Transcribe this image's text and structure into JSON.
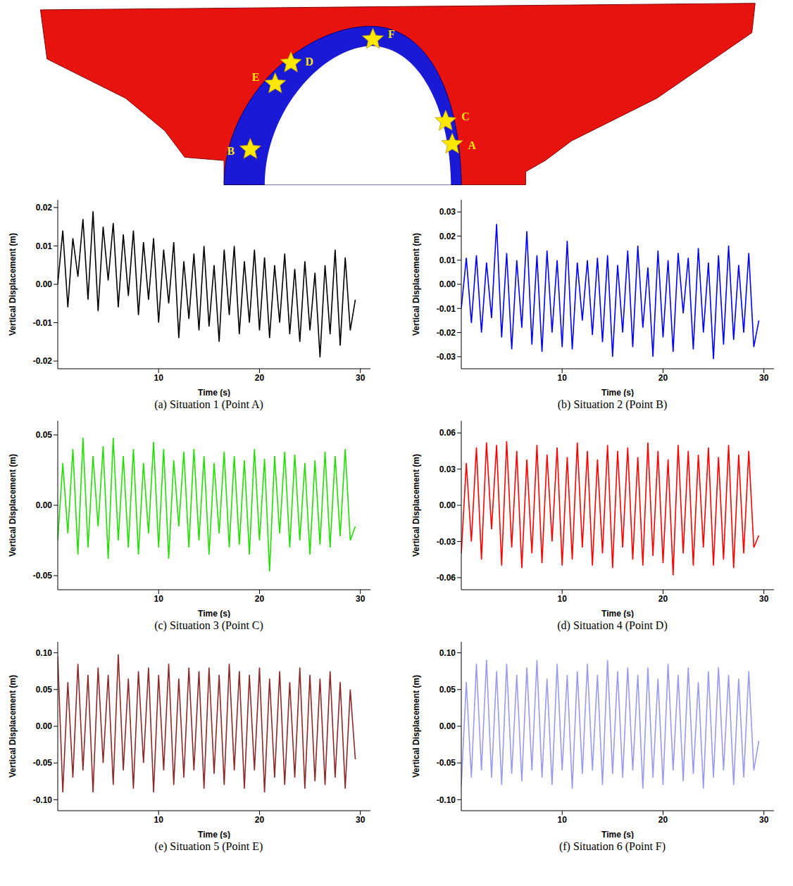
{
  "diagram": {
    "points": [
      "A",
      "B",
      "C",
      "D",
      "E",
      "F"
    ]
  },
  "chart_data": [
    {
      "type": "line",
      "title": "(a) Situation 1 (Point A)",
      "xlabel": "Time (s)",
      "ylabel": "Vertical Displacement (m)",
      "color": "#000000",
      "grid": false,
      "xlim": [
        0,
        31
      ],
      "xticks": [
        10,
        20,
        30
      ],
      "ylim": [
        -0.022,
        0.022
      ],
      "yticks": [
        -0.02,
        -0.01,
        {
          "value": 0,
          "label": "0.00"
        },
        0.01,
        0.02
      ],
      "x": [
        0,
        0.5,
        1,
        1.5,
        2,
        2.5,
        3,
        3.5,
        4,
        4.5,
        5,
        5.5,
        6,
        6.5,
        7,
        7.5,
        8,
        8.5,
        9,
        9.5,
        10,
        10.5,
        11,
        11.5,
        12,
        12.5,
        13,
        13.5,
        14,
        14.5,
        15,
        15.5,
        16,
        16.5,
        17,
        17.5,
        18,
        18.5,
        19,
        19.5,
        20,
        20.5,
        21,
        21.5,
        22,
        22.5,
        23,
        23.5,
        24,
        24.5,
        25,
        25.5,
        26,
        26.5,
        27,
        27.5,
        28,
        28.5,
        29,
        29.5
      ],
      "values": [
        0.0,
        0.014,
        -0.006,
        0.012,
        0.002,
        0.017,
        -0.004,
        0.019,
        -0.007,
        0.015,
        0.001,
        0.016,
        -0.006,
        0.013,
        -0.003,
        0.014,
        -0.008,
        0.011,
        -0.004,
        0.012,
        -0.01,
        0.009,
        -0.005,
        0.011,
        -0.014,
        0.006,
        -0.009,
        0.008,
        -0.012,
        0.01,
        -0.011,
        0.005,
        -0.015,
        0.009,
        -0.008,
        0.01,
        -0.013,
        0.006,
        -0.01,
        0.009,
        -0.012,
        0.007,
        -0.014,
        0.005,
        -0.01,
        0.008,
        -0.013,
        0.004,
        -0.015,
        0.006,
        -0.012,
        0.003,
        -0.019,
        0.005,
        -0.013,
        0.009,
        -0.016,
        0.007,
        -0.012,
        -0.004
      ]
    },
    {
      "type": "line",
      "title": "(b) Situation 2 (Point B)",
      "xlabel": "Time (s)",
      "ylabel": "Vertical Displacement (m)",
      "color": "#0000ff",
      "grid": false,
      "xlim": [
        0,
        31
      ],
      "xticks": [
        10,
        20,
        30
      ],
      "ylim": [
        -0.035,
        0.035
      ],
      "yticks": [
        -0.03,
        -0.02,
        -0.01,
        {
          "value": 0,
          "label": "0.00"
        },
        0.01,
        0.02,
        0.03
      ],
      "x": [
        0,
        0.5,
        1,
        1.5,
        2,
        2.5,
        3,
        3.5,
        4,
        4.5,
        5,
        5.5,
        6,
        6.5,
        7,
        7.5,
        8,
        8.5,
        9,
        9.5,
        10,
        10.5,
        11,
        11.5,
        12,
        12.5,
        13,
        13.5,
        14,
        14.5,
        15,
        15.5,
        16,
        16.5,
        17,
        17.5,
        18,
        18.5,
        19,
        19.5,
        20,
        20.5,
        21,
        21.5,
        22,
        22.5,
        23,
        23.5,
        24,
        24.5,
        25,
        25.5,
        26,
        26.5,
        27,
        27.5,
        28,
        28.5,
        29,
        29.5
      ],
      "values": [
        -0.01,
        0.011,
        -0.016,
        0.012,
        -0.02,
        0.009,
        -0.014,
        0.025,
        -0.022,
        0.013,
        -0.027,
        0.01,
        -0.018,
        0.022,
        -0.025,
        0.012,
        -0.028,
        0.014,
        -0.02,
        0.01,
        -0.026,
        0.018,
        -0.027,
        0.009,
        -0.015,
        0.01,
        -0.021,
        0.011,
        -0.024,
        0.012,
        -0.03,
        0.008,
        -0.02,
        0.014,
        -0.026,
        0.016,
        -0.018,
        0.007,
        -0.03,
        0.014,
        -0.022,
        0.01,
        -0.028,
        0.013,
        -0.012,
        0.011,
        -0.027,
        0.015,
        -0.02,
        0.009,
        -0.031,
        0.012,
        -0.025,
        0.016,
        -0.023,
        0.008,
        -0.02,
        0.013,
        -0.026,
        -0.015
      ]
    },
    {
      "type": "line",
      "title": "(c) Situation 3 (Point C)",
      "xlabel": "Time (s)",
      "ylabel": "Vertical Displacement (m)",
      "color": "#22dd00",
      "grid": false,
      "xlim": [
        0,
        31
      ],
      "xticks": [
        10,
        20,
        30
      ],
      "ylim": [
        -0.06,
        0.06
      ],
      "yticks": [
        -0.05,
        {
          "value": 0,
          "label": "0.00"
        },
        0.05
      ],
      "x": [
        0,
        0.5,
        1,
        1.5,
        2,
        2.5,
        3,
        3.5,
        4,
        4.5,
        5,
        5.5,
        6,
        6.5,
        7,
        7.5,
        8,
        8.5,
        9,
        9.5,
        10,
        10.5,
        11,
        11.5,
        12,
        12.5,
        13,
        13.5,
        14,
        14.5,
        15,
        15.5,
        16,
        16.5,
        17,
        17.5,
        18,
        18.5,
        19,
        19.5,
        20,
        20.5,
        21,
        21.5,
        22,
        22.5,
        23,
        23.5,
        24,
        24.5,
        25,
        25.5,
        26,
        26.5,
        27,
        27.5,
        28,
        28.5,
        29,
        29.5
      ],
      "values": [
        -0.025,
        0.03,
        -0.02,
        0.04,
        -0.035,
        0.048,
        -0.03,
        0.035,
        -0.015,
        0.042,
        -0.038,
        0.048,
        -0.025,
        0.035,
        -0.03,
        0.04,
        -0.035,
        0.03,
        -0.02,
        0.045,
        -0.03,
        0.04,
        -0.038,
        0.032,
        -0.015,
        0.038,
        -0.03,
        0.04,
        -0.025,
        0.035,
        -0.035,
        0.03,
        -0.02,
        0.038,
        -0.03,
        0.035,
        -0.028,
        0.032,
        -0.035,
        0.04,
        -0.025,
        0.033,
        -0.047,
        0.035,
        -0.02,
        0.038,
        -0.03,
        0.036,
        -0.025,
        0.03,
        -0.035,
        0.032,
        -0.028,
        0.038,
        -0.03,
        0.035,
        -0.022,
        0.04,
        -0.025,
        -0.015
      ]
    },
    {
      "type": "line",
      "title": "(d) Situation 4 (Point D)",
      "xlabel": "Time (s)",
      "ylabel": "Vertical Displacement (m)",
      "color": "#ff0000",
      "grid": false,
      "xlim": [
        0,
        31
      ],
      "xticks": [
        10,
        20,
        30
      ],
      "ylim": [
        -0.07,
        0.07
      ],
      "yticks": [
        -0.06,
        -0.03,
        {
          "value": 0,
          "label": "0.00"
        },
        0.03,
        0.06
      ],
      "x": [
        0,
        0.5,
        1,
        1.5,
        2,
        2.5,
        3,
        3.5,
        4,
        4.5,
        5,
        5.5,
        6,
        6.5,
        7,
        7.5,
        8,
        8.5,
        9,
        9.5,
        10,
        10.5,
        11,
        11.5,
        12,
        12.5,
        13,
        13.5,
        14,
        14.5,
        15,
        15.5,
        16,
        16.5,
        17,
        17.5,
        18,
        18.5,
        19,
        19.5,
        20,
        20.5,
        21,
        21.5,
        22,
        22.5,
        23,
        23.5,
        24,
        24.5,
        25,
        25.5,
        26,
        26.5,
        27,
        27.5,
        28,
        28.5,
        29,
        29.5
      ],
      "values": [
        -0.04,
        0.035,
        -0.03,
        0.048,
        -0.045,
        0.052,
        -0.02,
        0.05,
        -0.05,
        0.053,
        -0.035,
        0.045,
        -0.052,
        0.038,
        -0.04,
        0.05,
        -0.048,
        0.042,
        -0.03,
        0.048,
        -0.05,
        0.04,
        -0.045,
        0.052,
        -0.035,
        0.045,
        -0.05,
        0.038,
        -0.04,
        0.05,
        -0.052,
        0.045,
        -0.035,
        0.048,
        -0.045,
        0.04,
        -0.05,
        0.052,
        -0.042,
        0.045,
        -0.048,
        0.038,
        -0.058,
        0.05,
        -0.04,
        0.045,
        -0.05,
        0.042,
        -0.035,
        0.048,
        -0.05,
        0.04,
        -0.045,
        0.05,
        -0.052,
        0.042,
        -0.04,
        0.045,
        -0.035,
        -0.025
      ]
    },
    {
      "type": "line",
      "title": "(e) Situation 5 (Point E)",
      "xlabel": "Time (s)",
      "ylabel": "Vertical Displacement (m)",
      "color": "#8b2a2a",
      "grid": false,
      "xlim": [
        0,
        31
      ],
      "xticks": [
        10,
        20,
        30
      ],
      "ylim": [
        -0.115,
        0.115
      ],
      "yticks": [
        {
          "value": -0.1,
          "label": "-0.10"
        },
        -0.05,
        {
          "value": 0,
          "label": "0.00"
        },
        0.05,
        {
          "value": 0.1,
          "label": "0.10"
        }
      ],
      "x": [
        0,
        0.5,
        1,
        1.5,
        2,
        2.5,
        3,
        3.5,
        4,
        4.5,
        5,
        5.5,
        6,
        6.5,
        7,
        7.5,
        8,
        8.5,
        9,
        9.5,
        10,
        10.5,
        11,
        11.5,
        12,
        12.5,
        13,
        13.5,
        14,
        14.5,
        15,
        15.5,
        16,
        16.5,
        17,
        17.5,
        18,
        18.5,
        19,
        19.5,
        20,
        20.5,
        21,
        21.5,
        22,
        22.5,
        23,
        23.5,
        24,
        24.5,
        25,
        25.5,
        26,
        26.5,
        27,
        27.5,
        28,
        28.5,
        29,
        29.5
      ],
      "values": [
        0.095,
        -0.09,
        0.06,
        -0.07,
        0.085,
        -0.06,
        0.07,
        -0.09,
        0.08,
        -0.05,
        0.07,
        -0.08,
        0.098,
        -0.06,
        0.065,
        -0.085,
        0.075,
        -0.05,
        0.08,
        -0.09,
        0.07,
        -0.06,
        0.085,
        -0.08,
        0.065,
        -0.07,
        0.08,
        -0.06,
        0.075,
        -0.085,
        0.08,
        -0.065,
        0.07,
        -0.08,
        0.085,
        -0.06,
        0.075,
        -0.085,
        0.07,
        -0.06,
        0.08,
        -0.09,
        0.065,
        -0.07,
        0.075,
        -0.08,
        0.06,
        -0.07,
        0.08,
        -0.085,
        0.07,
        -0.075,
        0.065,
        -0.08,
        0.075,
        -0.07,
        0.06,
        -0.085,
        0.05,
        -0.045
      ]
    },
    {
      "type": "line",
      "title": "(f) Situation 6 (Point F)",
      "xlabel": "Time (s)",
      "ylabel": "Vertical Displacement (m)",
      "color": "#9a9aee",
      "grid": false,
      "xlim": [
        0,
        31
      ],
      "xticks": [
        10,
        20,
        30
      ],
      "ylim": [
        -0.115,
        0.115
      ],
      "yticks": [
        {
          "value": -0.1,
          "label": "-0.10"
        },
        -0.05,
        {
          "value": 0,
          "label": "0.00"
        },
        0.05,
        {
          "value": 0.1,
          "label": "0.10"
        }
      ],
      "x": [
        0,
        0.5,
        1,
        1.5,
        2,
        2.5,
        3,
        3.5,
        4,
        4.5,
        5,
        5.5,
        6,
        6.5,
        7,
        7.5,
        8,
        8.5,
        9,
        9.5,
        10,
        10.5,
        11,
        11.5,
        12,
        12.5,
        13,
        13.5,
        14,
        14.5,
        15,
        15.5,
        16,
        16.5,
        17,
        17.5,
        18,
        18.5,
        19,
        19.5,
        20,
        20.5,
        21,
        21.5,
        22,
        22.5,
        23,
        23.5,
        24,
        24.5,
        25,
        25.5,
        26,
        26.5,
        27,
        27.5,
        28,
        28.5,
        29,
        29.5
      ],
      "values": [
        -0.08,
        0.06,
        -0.07,
        0.085,
        -0.06,
        0.09,
        -0.07,
        0.075,
        -0.08,
        0.085,
        -0.065,
        0.07,
        -0.075,
        0.08,
        -0.06,
        0.09,
        -0.07,
        0.065,
        -0.08,
        0.085,
        -0.06,
        0.07,
        -0.085,
        0.075,
        -0.065,
        0.085,
        -0.06,
        0.07,
        -0.08,
        0.09,
        -0.065,
        0.075,
        -0.07,
        0.08,
        -0.06,
        0.07,
        -0.085,
        0.08,
        -0.07,
        0.065,
        -0.08,
        0.085,
        -0.06,
        0.07,
        -0.075,
        0.08,
        -0.065,
        0.06,
        -0.085,
        0.075,
        -0.07,
        0.08,
        -0.06,
        0.07,
        -0.08,
        0.065,
        -0.07,
        0.075,
        -0.06,
        -0.02
      ]
    }
  ]
}
